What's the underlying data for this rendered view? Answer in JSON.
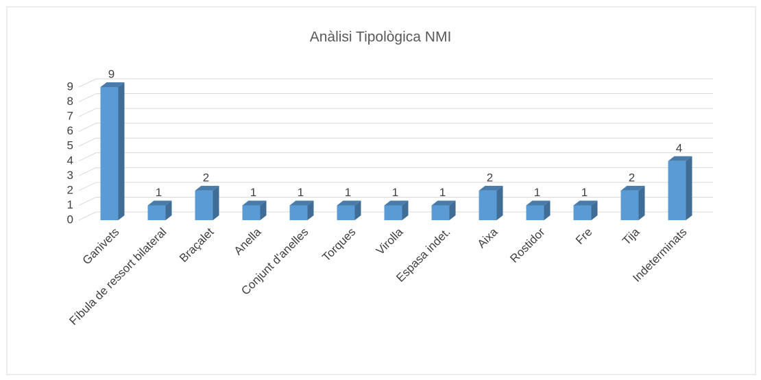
{
  "chart_data": {
    "type": "bar3d",
    "title": "Anàlisi Tipològica NMI",
    "categories": [
      "Ganivets",
      "Fíbula de ressort bilateral",
      "Braçalet",
      "Anella",
      "Conjunt d'anelles",
      "Torques",
      "Virolla",
      "Espasa indet.",
      "Aixa",
      "Rostidor",
      "Fre",
      "Tija",
      "Indeterminats"
    ],
    "values": [
      9,
      1,
      2,
      1,
      1,
      1,
      1,
      1,
      2,
      1,
      1,
      2,
      4
    ],
    "color": "#5b9bd5",
    "ylim": [
      0,
      9
    ],
    "yticks": [
      0,
      1,
      2,
      3,
      4,
      5,
      6,
      7,
      8,
      9
    ],
    "grid": true
  }
}
